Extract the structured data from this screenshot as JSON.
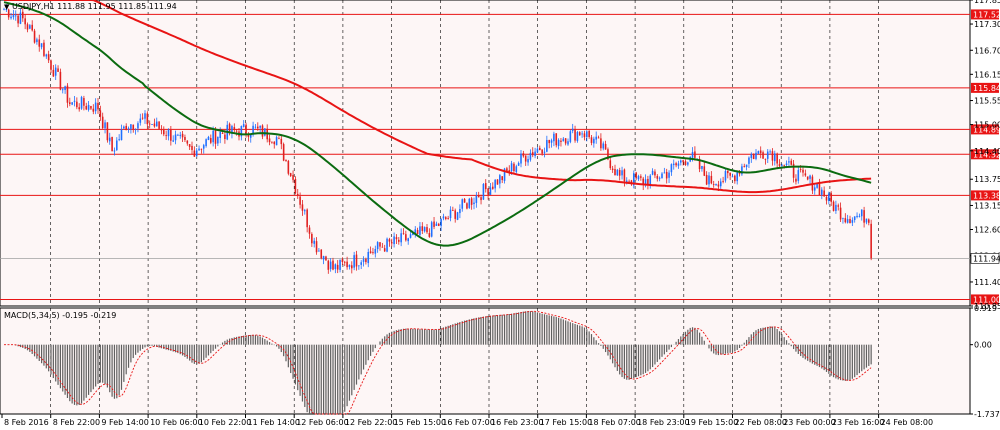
{
  "header": {
    "symbol": "USDJPY,H1",
    "ohlc": "111.88 111.95 111.85 111.94"
  },
  "macd_header": {
    "label": "MACD(5,34,5)",
    "values": "-0.195 -0.219"
  },
  "colors": {
    "background": "#fdf6f6",
    "candle_up": "#1e6fff",
    "candle_down": "#e02020",
    "ma_fast": "#0b6b10",
    "ma_slow": "#e81414",
    "level_line": "#e81414",
    "macd_hist": "#606060",
    "macd_signal": "#e81414"
  },
  "chart_data": [
    {
      "type": "candlestick",
      "y_axis_ticks": [
        "117.85",
        "117.30",
        "116.70",
        "116.15",
        "115.55",
        "115.00",
        "114.40",
        "113.75",
        "113.15",
        "112.60",
        "112.00",
        "111.40",
        "110.85"
      ],
      "ylim": [
        110.85,
        117.85
      ],
      "x_axis_ticks": [
        "8 Feb 2016",
        "8 Feb 22:00",
        "9 Feb 14:00",
        "10 Feb 06:00",
        "10 Feb 22:00",
        "11 Feb 14:00",
        "12 Feb 06:00",
        "12 Feb 22:00",
        "15 Feb 15:00",
        "16 Feb 07:00",
        "16 Feb 23:00",
        "17 Feb 15:00",
        "18 Feb 07:00",
        "18 Feb 23:00",
        "19 Feb 15:00",
        "22 Feb 08:00",
        "23 Feb 00:00",
        "23 Feb 16:00",
        "24 Feb 08:00"
      ],
      "horizontal_levels": [
        117.52,
        115.84,
        114.89,
        114.32,
        113.38,
        111.0
      ],
      "current_price": 111.94,
      "price_path": {
        "bars_count": 370,
        "anchors": [
          [
            0,
            117.65
          ],
          [
            8,
            117.4
          ],
          [
            16,
            116.8
          ],
          [
            28,
            115.5
          ],
          [
            40,
            115.4
          ],
          [
            46,
            114.4
          ],
          [
            52,
            115.0
          ],
          [
            60,
            115.1
          ],
          [
            70,
            114.8
          ],
          [
            80,
            114.4
          ],
          [
            92,
            114.8
          ],
          [
            106,
            114.9
          ],
          [
            116,
            114.7
          ],
          [
            122,
            113.9
          ],
          [
            132,
            112.3
          ],
          [
            140,
            111.7
          ],
          [
            150,
            111.9
          ],
          [
            160,
            112.2
          ],
          [
            172,
            112.4
          ],
          [
            182,
            112.6
          ],
          [
            192,
            113.0
          ],
          [
            202,
            113.4
          ],
          [
            212,
            113.8
          ],
          [
            222,
            114.3
          ],
          [
            234,
            114.65
          ],
          [
            246,
            114.85
          ],
          [
            254,
            114.5
          ],
          [
            262,
            113.8
          ],
          [
            272,
            113.7
          ],
          [
            282,
            113.9
          ],
          [
            292,
            114.3
          ],
          [
            300,
            113.7
          ],
          [
            310,
            113.8
          ],
          [
            318,
            114.3
          ],
          [
            326,
            114.4
          ],
          [
            336,
            113.9
          ],
          [
            346,
            113.6
          ],
          [
            352,
            113.2
          ],
          [
            358,
            112.9
          ]
        ]
      }
    },
    {
      "type": "macd",
      "label": "MACD(5,34,5)",
      "y_axis_ticks": [
        "0.919",
        "0.00",
        "-1.737"
      ],
      "ylim": [
        -1.737,
        0.919
      ]
    }
  ]
}
